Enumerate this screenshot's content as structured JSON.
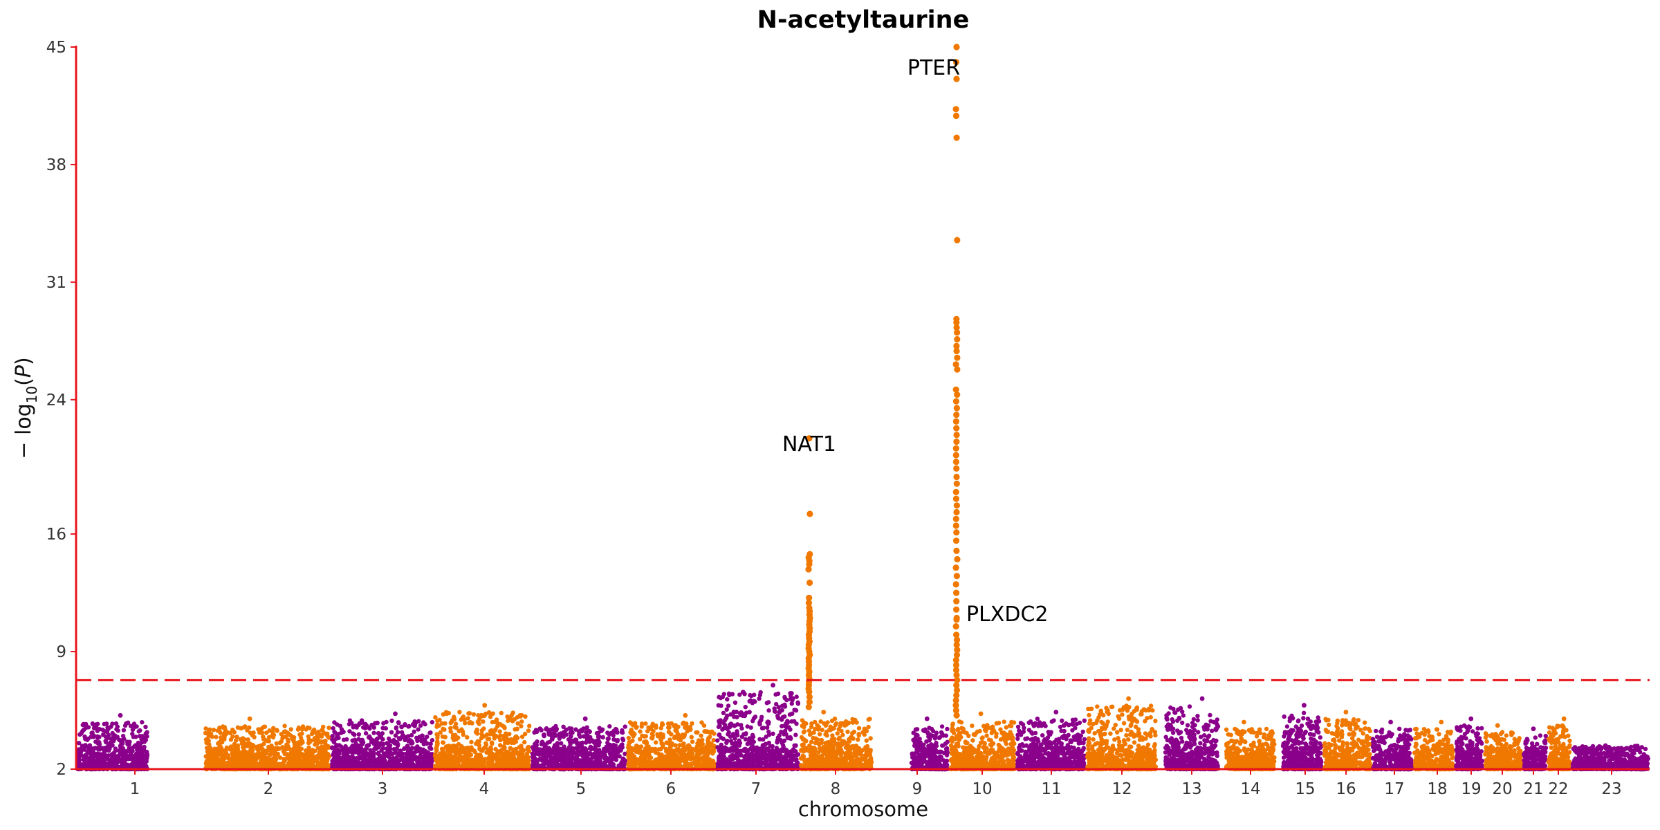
{
  "chart_data": {
    "type": "scatter",
    "subtype": "manhattan",
    "title": "N-acetyltaurine",
    "xlabel": "chromosome",
    "ylabel": "−log10(P)",
    "ylim": [
      2,
      45
    ],
    "yticks": [
      2,
      9,
      16,
      24,
      31,
      38,
      45
    ],
    "grid": false,
    "significance_threshold": 7.3,
    "colors": {
      "odd_chromosomes": "#8B008B",
      "even_chromosomes": "#F07800",
      "threshold_line": "#E8141C",
      "axes": "#E8141C"
    },
    "chromosomes": [
      {
        "label": "1",
        "max": 5.2
      },
      {
        "label": "2",
        "max": 5.0
      },
      {
        "label": "3",
        "max": 5.3
      },
      {
        "label": "4",
        "max": 5.8
      },
      {
        "label": "5",
        "max": 5.0
      },
      {
        "label": "6",
        "max": 5.2
      },
      {
        "label": "7",
        "max": 7.0
      },
      {
        "label": "8",
        "max": 5.4
      },
      {
        "label": "9",
        "max": 5.0
      },
      {
        "label": "10",
        "max": 5.3
      },
      {
        "label": "11",
        "max": 5.4
      },
      {
        "label": "12",
        "max": 6.2
      },
      {
        "label": "13",
        "max": 6.2
      },
      {
        "label": "14",
        "max": 4.8
      },
      {
        "label": "15",
        "max": 5.8
      },
      {
        "label": "16",
        "max": 5.4
      },
      {
        "label": "17",
        "max": 4.8
      },
      {
        "label": "18",
        "max": 4.8
      },
      {
        "label": "19",
        "max": 5.0
      },
      {
        "label": "20",
        "max": 4.6
      },
      {
        "label": "21",
        "max": 4.4
      },
      {
        "label": "22",
        "max": 5.0
      },
      {
        "label": "23",
        "max": 3.4
      }
    ],
    "peaks": [
      {
        "gene": "NAT1",
        "chromosome": "8",
        "lead_value": 21.7,
        "values": [
          17.2,
          14.8,
          14.6,
          14.4,
          14.2,
          13.9,
          13.1,
          12.2,
          11.9,
          11.6,
          11.4,
          11.2,
          11.0,
          10.8,
          10.6,
          10.4,
          10.2,
          10.0,
          9.8,
          9.6,
          9.4,
          9.2,
          9.0,
          8.8,
          8.6,
          8.4,
          8.2,
          8.0,
          7.8,
          7.6,
          7.4,
          7.2,
          7.0,
          6.8,
          6.6,
          6.3,
          6.0,
          5.7
        ]
      },
      {
        "gene": "PTER",
        "chromosome": "10",
        "lead_value": 45.0,
        "values": [
          44.1,
          43.1,
          41.3,
          40.9,
          39.6,
          33.5,
          28.8,
          28.6,
          28.3,
          28.0,
          27.6,
          27.2,
          26.9,
          26.5,
          26.1,
          25.8,
          24.6,
          24.3,
          23.9,
          23.5,
          23.1,
          22.7,
          22.3,
          21.9,
          21.5,
          21.1,
          20.7,
          20.3,
          19.9,
          19.4,
          19.0,
          18.5,
          18.1,
          17.7,
          17.3,
          16.9,
          16.5,
          16.1,
          15.6,
          15.0,
          14.5,
          14.0,
          13.5,
          13.0,
          12.5,
          12.0,
          11.5,
          11.0,
          10.5,
          10.0,
          9.7,
          9.4,
          9.1,
          8.8,
          8.5,
          8.2,
          7.9,
          7.6,
          7.3,
          7.0,
          6.7,
          6.4,
          6.1,
          5.8,
          5.5,
          5.2
        ]
      },
      {
        "gene": "PLXDC2",
        "chromosome": "10",
        "lead_value": 10.9,
        "values": []
      }
    ]
  }
}
